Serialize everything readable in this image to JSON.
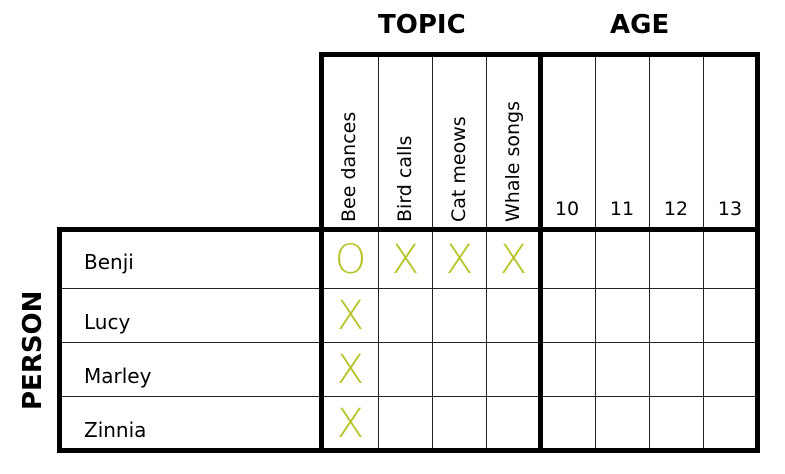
{
  "categories": {
    "topic": "TOPIC",
    "age": "AGE",
    "person": "PERSON"
  },
  "topics": [
    "Bee dances",
    "Bird calls",
    "Cat meows",
    "Whale songs"
  ],
  "ages": [
    "10",
    "11",
    "12",
    "13"
  ],
  "persons": [
    "Benji",
    "Lucy",
    "Marley",
    "Zinnia"
  ],
  "marks": [
    [
      "O",
      "X",
      "X",
      "X",
      "",
      "",
      "",
      ""
    ],
    [
      "X",
      "",
      "",
      "",
      "",
      "",
      "",
      ""
    ],
    [
      "X",
      "",
      "",
      "",
      "",
      "",
      "",
      ""
    ],
    [
      "X",
      "",
      "",
      "",
      "",
      "",
      "",
      ""
    ]
  ],
  "mark_color": "#b8c42a"
}
